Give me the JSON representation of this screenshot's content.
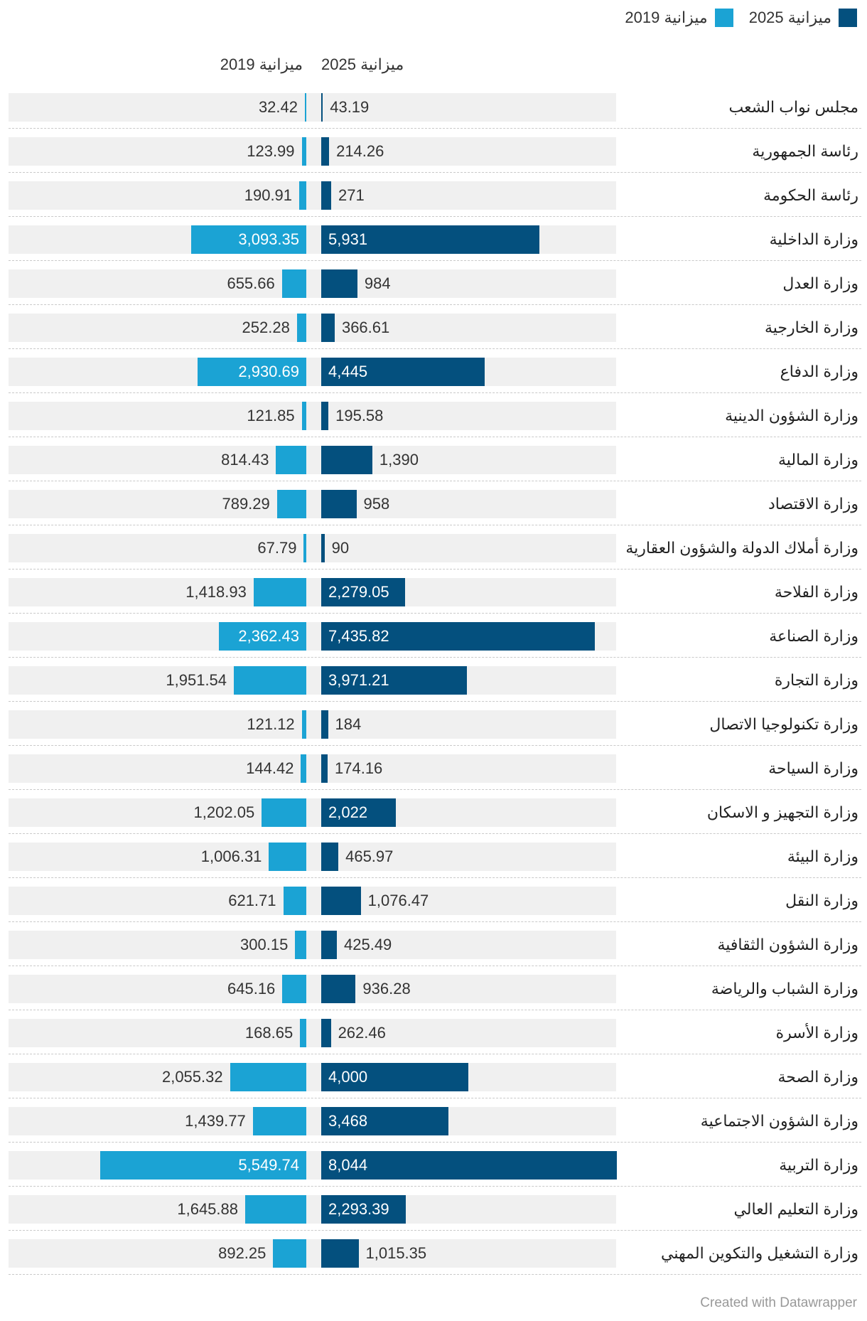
{
  "legend": [
    {
      "label": "ميزانية 2025",
      "color": "#04507e"
    },
    {
      "label": "ميزانية 2019",
      "color": "#1ba3d4"
    }
  ],
  "headers": {
    "col_2025": "ميزانية 2025",
    "col_2019": "ميزانية 2019"
  },
  "credit": "Created with Datawrapper",
  "chart_data": {
    "type": "bar",
    "orientation": "horizontal",
    "categories": [
      "مجلس نواب الشعب",
      "رئاسة الجمهورية",
      "رئاسة الحكومة",
      "وزارة الداخلية",
      "وزارة العدل",
      "وزارة الخارجية",
      "وزارة الدفاع",
      "وزارة الشؤون الدينية",
      "وزارة المالية",
      "وزارة الاقتصاد",
      "وزارة أملاك الدولة والشؤون العقارية",
      "وزارة الفلاحة",
      "وزارة الصناعة",
      "وزارة التجارة",
      "وزارة تكنولوجيا الاتصال",
      "وزارة السياحة",
      "وزارة التجهيز و الاسكان",
      "وزارة البيئة",
      "وزارة النقل",
      "وزارة الشؤون الثقافية",
      "وزارة الشباب والرياضة",
      "وزارة الأسرة",
      "وزارة الصحة",
      "وزارة الشؤون الاجتماعية",
      "وزارة التربية",
      "وزارة التعليم العالي",
      "وزارة التشغيل والتكوين المهني"
    ],
    "series": [
      {
        "name": "ميزانية 2025",
        "color": "#04507e",
        "values": [
          43.19,
          214.26,
          271,
          5931,
          984,
          366.61,
          4445,
          195.58,
          1390,
          958,
          90,
          2279.05,
          7435.82,
          3971.21,
          184,
          174.16,
          2022,
          465.97,
          1076.47,
          425.49,
          936.28,
          262.46,
          4000,
          3468,
          8044,
          2293.39,
          1015.35
        ],
        "labels": [
          "43.19",
          "214.26",
          "271",
          "5,931",
          "984",
          "366.61",
          "4,445",
          "195.58",
          "1,390",
          "958",
          "90",
          "2,279.05",
          "7,435.82",
          "3,971.21",
          "184",
          "174.16",
          "2,022",
          "465.97",
          "1,076.47",
          "425.49",
          "936.28",
          "262.46",
          "4,000",
          "3,468",
          "8,044",
          "2,293.39",
          "1,015.35"
        ]
      },
      {
        "name": "ميزانية 2019",
        "color": "#1ba3d4",
        "values": [
          32.42,
          123.99,
          190.91,
          3093.35,
          655.66,
          252.28,
          2930.69,
          121.85,
          814.43,
          789.29,
          67.79,
          1418.93,
          2362.43,
          1951.54,
          121.12,
          144.42,
          1202.05,
          1006.31,
          621.71,
          300.15,
          645.16,
          168.65,
          2055.32,
          1439.77,
          5549.74,
          1645.88,
          892.25
        ],
        "labels": [
          "32.42",
          "123.99",
          "190.91",
          "3,093.35",
          "655.66",
          "252.28",
          "2,930.69",
          "121.85",
          "814.43",
          "789.29",
          "67.79",
          "1,418.93",
          "2,362.43",
          "1,951.54",
          "121.12",
          "144.42",
          "1,202.05",
          "1,006.31",
          "621.71",
          "300.15",
          "645.16",
          "168.65",
          "2,055.32",
          "1,439.77",
          "5,549.74",
          "1,645.88",
          "892.25"
        ]
      }
    ],
    "xlim_2025": [
      0,
      8044
    ],
    "xlim_2019": [
      0,
      5549.74
    ],
    "legend_position": "top-right",
    "grid": false
  }
}
